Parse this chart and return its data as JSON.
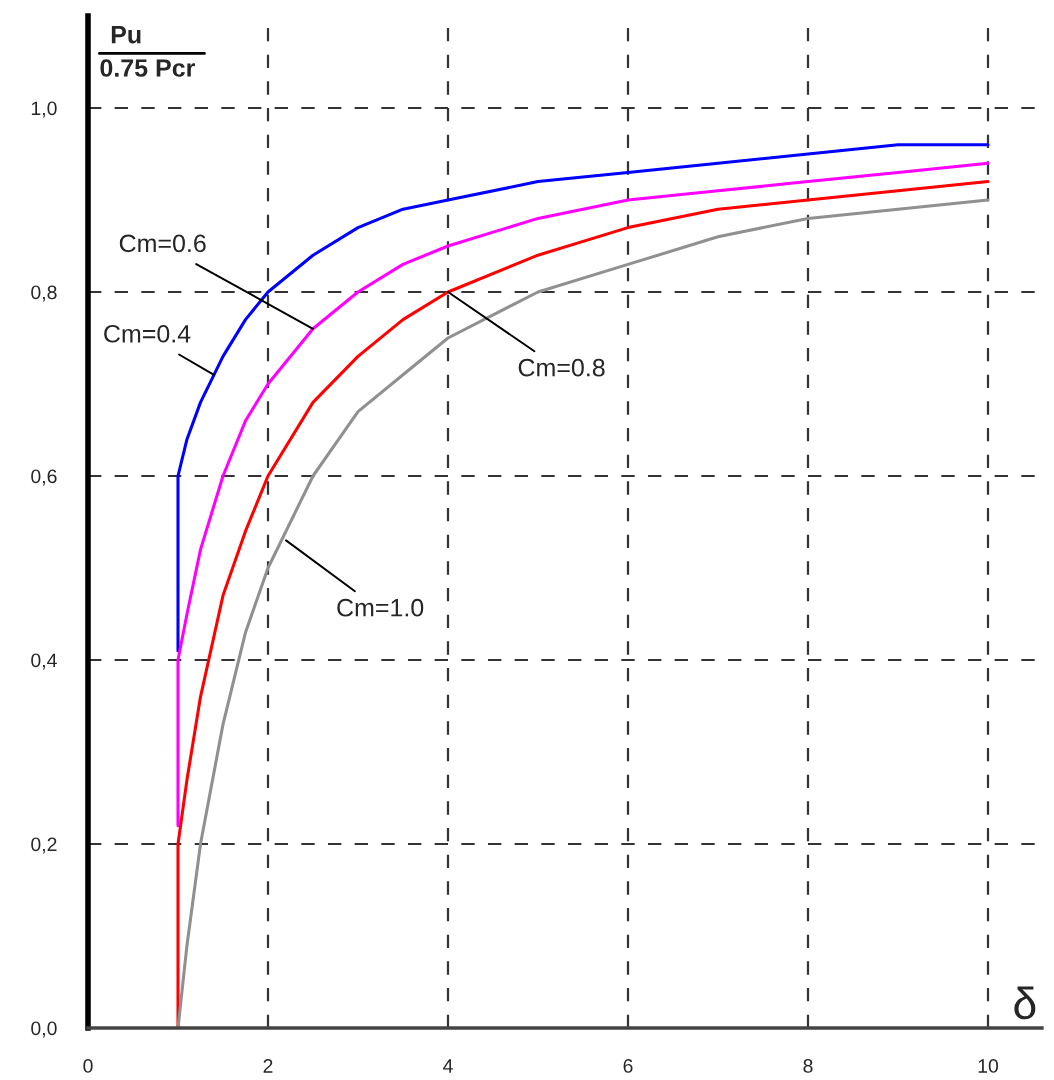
{
  "chart_data": {
    "type": "line",
    "xlabel": "δ",
    "ylabel": "Pu\n0.75 Pcr",
    "xlim": [
      0,
      10.6
    ],
    "ylim": [
      0,
      1.1
    ],
    "xticks": [
      0,
      2,
      4,
      6,
      8,
      10
    ],
    "yticks": [
      {
        "value": 0,
        "label": "0,0"
      },
      {
        "value": 0.2,
        "label": "0,2"
      },
      {
        "value": 0.4,
        "label": "0,4"
      },
      {
        "value": 0.6,
        "label": "0,6"
      },
      {
        "value": 0.8,
        "label": "0,8"
      },
      {
        "value": 1.0,
        "label": "1,0"
      }
    ],
    "grid": true,
    "legend": false,
    "marker": "none",
    "line_style": "solid",
    "series": [
      {
        "color": "#0000ff",
        "x": [
          1,
          1,
          1.1,
          1.25,
          1.5,
          1.75,
          2,
          2.5,
          3,
          3.5,
          4,
          5,
          6,
          7,
          8,
          9,
          10
        ],
        "values": [
          0.41,
          0.6,
          0.64,
          0.68,
          0.73,
          0.77,
          0.8,
          0.84,
          0.87,
          0.89,
          0.9,
          0.92,
          0.93,
          0.94,
          0.95,
          0.96,
          0.96
        ]
      },
      {
        "color": "#ff00ff",
        "x": [
          1,
          1,
          1.1,
          1.25,
          1.5,
          1.75,
          2,
          2.5,
          3,
          3.5,
          4,
          5,
          6,
          7,
          8,
          9,
          10
        ],
        "values": [
          0.22,
          0.4,
          0.45,
          0.52,
          0.6,
          0.66,
          0.7,
          0.76,
          0.8,
          0.83,
          0.85,
          0.88,
          0.9,
          0.91,
          0.92,
          0.93,
          0.94
        ]
      },
      {
        "color": "#ff0000",
        "x": [
          1,
          1,
          1.1,
          1.25,
          1.5,
          1.75,
          2,
          2.5,
          3,
          3.5,
          4,
          5,
          6,
          7,
          8,
          9,
          10
        ],
        "values": [
          0.0,
          0.2,
          0.27,
          0.36,
          0.47,
          0.54,
          0.6,
          0.68,
          0.73,
          0.77,
          0.8,
          0.84,
          0.87,
          0.89,
          0.9,
          0.91,
          0.92
        ]
      },
      {
        "color": "#909090",
        "x": [
          1,
          1.1,
          1.25,
          1.5,
          1.75,
          2,
          2.5,
          3,
          3.5,
          4,
          5,
          6,
          7,
          8,
          9,
          10
        ],
        "values": [
          0.0,
          0.09,
          0.2,
          0.33,
          0.43,
          0.5,
          0.6,
          0.67,
          0.71,
          0.75,
          0.8,
          0.83,
          0.86,
          0.88,
          0.89,
          0.9
        ]
      }
    ],
    "annotations": [
      {
        "text": "Cm=0.6",
        "x": 2.5,
        "y": 0.76
      },
      {
        "text": "Cm=0.4",
        "x": 1.4,
        "y": 0.71
      },
      {
        "text": "Cm=0.8",
        "x": 4.0,
        "y": 0.8
      },
      {
        "text": "Cm=1.0",
        "x": 2.2,
        "y": 0.53
      }
    ]
  }
}
